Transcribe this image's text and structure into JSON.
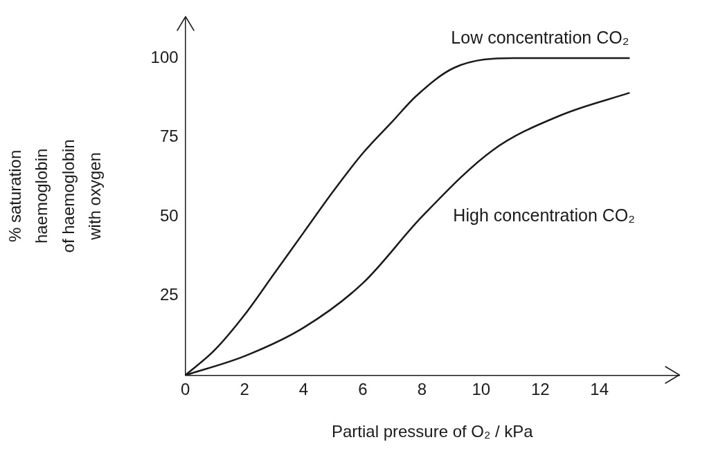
{
  "chart_data": {
    "type": "line",
    "xlabel": "Partial pressure of O₂ / kPa",
    "ylabel": "% saturation\nhaemoglobin\nof haemoglobin\nwith oxygen",
    "xlim": [
      0,
      16.7
    ],
    "ylim": [
      0,
      113
    ],
    "xticks": [
      0,
      2,
      4,
      6,
      8,
      10,
      12,
      14
    ],
    "yticks": [
      25,
      50,
      75,
      100
    ],
    "grid": false,
    "legend": false,
    "marker": "none",
    "line_style": "solid",
    "series": [
      {
        "name": "Low concentration CO₂",
        "color": "#1a1a1a",
        "x": [
          0,
          1,
          2,
          3,
          4,
          5,
          6,
          7,
          7.8,
          9.1,
          11.1,
          15
        ],
        "values": [
          0,
          8,
          19,
          32,
          45,
          58,
          70,
          80,
          88,
          97,
          100,
          100
        ]
      },
      {
        "name": "High concentration CO₂",
        "color": "#1a1a1a",
        "x": [
          0,
          2,
          4,
          6,
          8,
          10.4,
          12.7,
          15
        ],
        "values": [
          0,
          6,
          15,
          29,
          50,
          71,
          82,
          89
        ]
      }
    ]
  }
}
